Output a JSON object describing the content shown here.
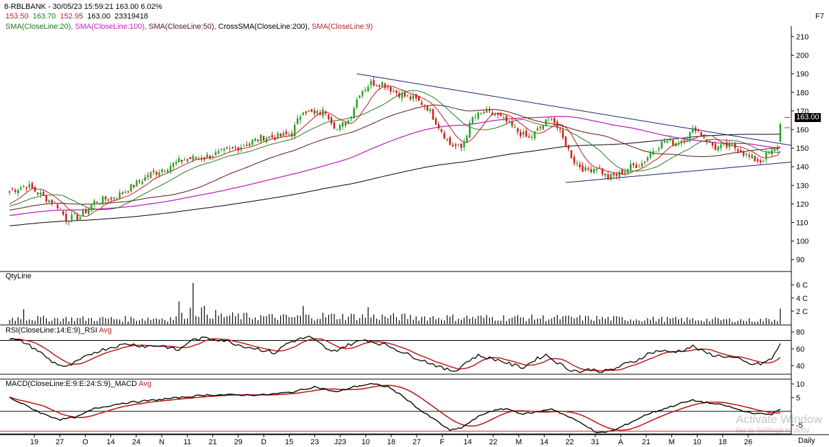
{
  "header": {
    "title": "8-RBLBANK - 30/05/23 15:59:21 163.00 6.02%",
    "ohlc": [
      "153.50",
      "163.70",
      "152.95",
      "163.00",
      "23319418"
    ],
    "hotkey": "F7",
    "indicators": [
      {
        "label": "SMA(CloseLine:20),",
        "color": "#1a7a1a"
      },
      {
        "label": "SMA(CloseLine:100),",
        "color": "#c21fc2"
      },
      {
        "label": "SMA(CloseLine:50),",
        "color": "#5a1010"
      },
      {
        "label": "CrossSMA(CloseLine:200),",
        "color": "#000000"
      },
      {
        "label": "SMA(CloseLine:9)",
        "color": "#c21f1f"
      }
    ]
  },
  "colors": {
    "up": "#22a022",
    "down": "#d01818",
    "sma9": "#c01818",
    "sma20": "#1e7a1e",
    "sma50": "#5a1212",
    "sma100": "#c020c0",
    "sma200": "#000000",
    "trend": "#1a1a7a",
    "price_tag": "#000000"
  },
  "price_tag": "163.00",
  "panels": {
    "volume": {
      "label": "QtyLine"
    },
    "rsi": {
      "label": "RSI(CloseLine:14:E:9)_RSI",
      "avg": "Avg"
    },
    "macd": {
      "label": "MACD(CloseLine:E:9:E:24:S:9)_MACD",
      "avg": "Avg"
    }
  },
  "footer": {
    "interval": "Daily"
  },
  "watermark": {
    "line1": "Activate Window",
    "line2": "Go to Settings to activ"
  },
  "chart_data": {
    "type": "candlestick",
    "symbol": "RBLBANK",
    "price_axis": {
      "ticks": [
        90,
        100,
        110,
        120,
        130,
        140,
        150,
        160,
        170,
        180,
        190,
        200,
        210
      ],
      "ylim": [
        84,
        212
      ]
    },
    "volume_axis": {
      "ticks": [
        "2 C",
        "4 C",
        "6 C"
      ]
    },
    "rsi_axis": {
      "ticks": [
        40,
        60,
        80
      ],
      "ylim": [
        25,
        85
      ],
      "levels": [
        30,
        70
      ]
    },
    "macd_axis": {
      "ticks": [
        10,
        5,
        -5
      ],
      "ylim": [
        -8,
        11
      ],
      "levels": [
        0
      ]
    },
    "x_ticks": [
      "19",
      "27",
      "O",
      "14",
      "24",
      "N",
      "11",
      "21",
      "29",
      "D",
      "15",
      "23",
      "J23",
      "10",
      "18",
      "27",
      "F",
      "14",
      "22",
      "M",
      "14",
      "22",
      "31",
      "A",
      "21",
      "M",
      "10",
      "18",
      "26"
    ],
    "price_anchors": [
      [
        0,
        127
      ],
      [
        6,
        130
      ],
      [
        12,
        124
      ],
      [
        17,
        119
      ],
      [
        20,
        112
      ],
      [
        25,
        113
      ],
      [
        30,
        121
      ],
      [
        38,
        124
      ],
      [
        44,
        130
      ],
      [
        50,
        136
      ],
      [
        56,
        140
      ],
      [
        62,
        144
      ],
      [
        68,
        145
      ],
      [
        74,
        147
      ],
      [
        80,
        150
      ],
      [
        85,
        153
      ],
      [
        90,
        156
      ],
      [
        95,
        156
      ],
      [
        100,
        158
      ],
      [
        104,
        171
      ],
      [
        108,
        168
      ],
      [
        112,
        170
      ],
      [
        116,
        160
      ],
      [
        120,
        165
      ],
      [
        124,
        180
      ],
      [
        128,
        185
      ],
      [
        132,
        185
      ],
      [
        136,
        181
      ],
      [
        140,
        178
      ],
      [
        144,
        176
      ],
      [
        148,
        172
      ],
      [
        152,
        162
      ],
      [
        156,
        152
      ],
      [
        160,
        150
      ],
      [
        164,
        166
      ],
      [
        168,
        169
      ],
      [
        172,
        168
      ],
      [
        176,
        164
      ],
      [
        180,
        159
      ],
      [
        184,
        155
      ],
      [
        188,
        161
      ],
      [
        192,
        167
      ],
      [
        196,
        155
      ],
      [
        200,
        143
      ],
      [
        204,
        138
      ],
      [
        208,
        140
      ],
      [
        212,
        134
      ],
      [
        216,
        136
      ],
      [
        220,
        140
      ],
      [
        224,
        142
      ],
      [
        228,
        149
      ],
      [
        232,
        154
      ],
      [
        236,
        153
      ],
      [
        240,
        156
      ],
      [
        243,
        161
      ],
      [
        246,
        156
      ],
      [
        250,
        150
      ],
      [
        254,
        151
      ],
      [
        258,
        150
      ],
      [
        262,
        145
      ],
      [
        266,
        143
      ],
      [
        268,
        146
      ],
      [
        270,
        148
      ],
      [
        272,
        150
      ],
      [
        273,
        163
      ]
    ],
    "volume_anchors": [
      [
        0,
        0.9
      ],
      [
        20,
        0.8
      ],
      [
        40,
        0.8
      ],
      [
        60,
        0.9
      ],
      [
        65,
        2.2
      ],
      [
        75,
        1.2
      ],
      [
        100,
        1.0
      ],
      [
        110,
        1.2
      ],
      [
        150,
        1.0
      ],
      [
        200,
        0.9
      ],
      [
        240,
        0.7
      ],
      [
        265,
        0.6
      ],
      [
        272,
        0.7
      ],
      [
        273,
        2.4
      ]
    ],
    "rsi_anchors": [
      [
        0,
        72
      ],
      [
        5,
        68
      ],
      [
        10,
        58
      ],
      [
        15,
        45
      ],
      [
        20,
        38
      ],
      [
        24,
        45
      ],
      [
        30,
        56
      ],
      [
        36,
        62
      ],
      [
        42,
        66
      ],
      [
        48,
        63
      ],
      [
        54,
        64
      ],
      [
        60,
        58
      ],
      [
        64,
        70
      ],
      [
        70,
        73
      ],
      [
        76,
        70
      ],
      [
        82,
        64
      ],
      [
        88,
        60
      ],
      [
        94,
        55
      ],
      [
        98,
        66
      ],
      [
        102,
        71
      ],
      [
        106,
        74
      ],
      [
        110,
        66
      ],
      [
        114,
        56
      ],
      [
        118,
        62
      ],
      [
        122,
        67
      ],
      [
        126,
        71
      ],
      [
        130,
        67
      ],
      [
        134,
        64
      ],
      [
        138,
        58
      ],
      [
        142,
        52
      ],
      [
        146,
        47
      ],
      [
        150,
        42
      ],
      [
        154,
        36
      ],
      [
        158,
        34
      ],
      [
        162,
        45
      ],
      [
        166,
        52
      ],
      [
        170,
        49
      ],
      [
        174,
        46
      ],
      [
        178,
        41
      ],
      [
        182,
        38
      ],
      [
        186,
        47
      ],
      [
        190,
        53
      ],
      [
        194,
        44
      ],
      [
        198,
        36
      ],
      [
        202,
        33
      ],
      [
        206,
        36
      ],
      [
        210,
        33
      ],
      [
        214,
        36
      ],
      [
        218,
        42
      ],
      [
        222,
        46
      ],
      [
        226,
        54
      ],
      [
        230,
        58
      ],
      [
        234,
        56
      ],
      [
        238,
        58
      ],
      [
        242,
        63
      ],
      [
        246,
        56
      ],
      [
        250,
        52
      ],
      [
        254,
        51
      ],
      [
        258,
        48
      ],
      [
        262,
        42
      ],
      [
        266,
        42
      ],
      [
        270,
        48
      ],
      [
        273,
        66
      ]
    ],
    "macd_anchors": [
      [
        0,
        5
      ],
      [
        6,
        2
      ],
      [
        12,
        -1
      ],
      [
        18,
        -3
      ],
      [
        24,
        -2
      ],
      [
        30,
        1
      ],
      [
        40,
        3
      ],
      [
        50,
        4
      ],
      [
        60,
        5
      ],
      [
        70,
        6
      ],
      [
        80,
        6
      ],
      [
        90,
        6
      ],
      [
        100,
        7
      ],
      [
        108,
        9
      ],
      [
        116,
        7
      ],
      [
        122,
        9
      ],
      [
        128,
        10
      ],
      [
        134,
        9
      ],
      [
        140,
        5
      ],
      [
        146,
        0
      ],
      [
        152,
        -4
      ],
      [
        156,
        -7
      ],
      [
        160,
        -6
      ],
      [
        166,
        -2
      ],
      [
        170,
        0
      ],
      [
        176,
        1
      ],
      [
        182,
        -1
      ],
      [
        188,
        0
      ],
      [
        192,
        1
      ],
      [
        198,
        -2
      ],
      [
        204,
        -5
      ],
      [
        208,
        -8
      ],
      [
        214,
        -7
      ],
      [
        220,
        -4
      ],
      [
        226,
        -1
      ],
      [
        232,
        1
      ],
      [
        238,
        3
      ],
      [
        242,
        4
      ],
      [
        248,
        3
      ],
      [
        254,
        2
      ],
      [
        260,
        0
      ],
      [
        266,
        -1
      ],
      [
        270,
        -1
      ],
      [
        273,
        1
      ]
    ],
    "trendlines": [
      {
        "name": "upper",
        "from": [
          123,
          190
        ],
        "to": [
          282,
          151.5
        ]
      },
      {
        "name": "lower",
        "from": [
          197,
          131.5
        ],
        "to": [
          282,
          142.5
        ]
      }
    ],
    "n_candles": 274
  }
}
